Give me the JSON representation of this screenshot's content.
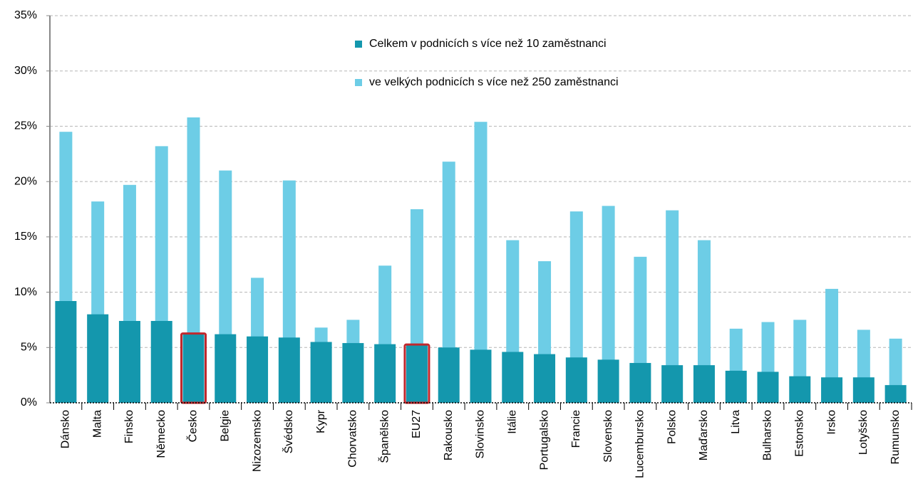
{
  "chart_data": {
    "type": "bar",
    "categories": [
      "Dánsko",
      "Malta",
      "Finsko",
      "Německo",
      "Česko",
      "Belgie",
      "Nizozemsko",
      "Švédsko",
      "Kypr",
      "Chorvatsko",
      "Španělsko",
      "EU27",
      "Rakousko",
      "Slovinsko",
      "Itálie",
      "Portugalsko",
      "Francie",
      "Slovensko",
      "Lucembursko",
      "Polsko",
      "Maďarsko",
      "Litva",
      "Bulharsko",
      "Estonsko",
      "Irsko",
      "Lotyšsko",
      "Rumunsko"
    ],
    "series": [
      {
        "name": "Celkem v podnicích s více než 10 zaměstnanci",
        "color": "#1497ad",
        "values": [
          9.2,
          8.0,
          7.4,
          7.4,
          6.2,
          6.2,
          6.0,
          5.9,
          5.5,
          5.4,
          5.3,
          5.2,
          5.0,
          4.8,
          4.6,
          4.4,
          4.1,
          3.9,
          3.6,
          3.4,
          3.4,
          2.9,
          2.8,
          2.4,
          2.3,
          2.3,
          1.6
        ]
      },
      {
        "name": "ve velkých podnicích s více než 250 zaměstnanci",
        "color": "#6dcde6",
        "values": [
          24.5,
          18.2,
          19.7,
          23.2,
          25.8,
          21.0,
          11.3,
          20.1,
          6.8,
          7.5,
          12.4,
          17.5,
          21.8,
          25.4,
          14.7,
          12.8,
          17.3,
          17.8,
          13.2,
          17.4,
          14.7,
          6.7,
          7.3,
          7.5,
          10.3,
          6.6,
          5.8
        ]
      }
    ],
    "ylim": [
      0,
      35
    ],
    "yticks": [
      {
        "value": 0,
        "label": "0%"
      },
      {
        "value": 5,
        "label": "5%"
      },
      {
        "value": 10,
        "label": "10%"
      },
      {
        "value": 15,
        "label": "15%"
      },
      {
        "value": 20,
        "label": "20%"
      },
      {
        "value": 25,
        "label": "25%"
      },
      {
        "value": 30,
        "label": "30%"
      },
      {
        "value": 35,
        "label": "35%"
      }
    ],
    "grid": true,
    "legend": "top",
    "highlighted_categories": [
      "Česko",
      "EU27"
    ],
    "highlight_color": "#c0282d"
  }
}
